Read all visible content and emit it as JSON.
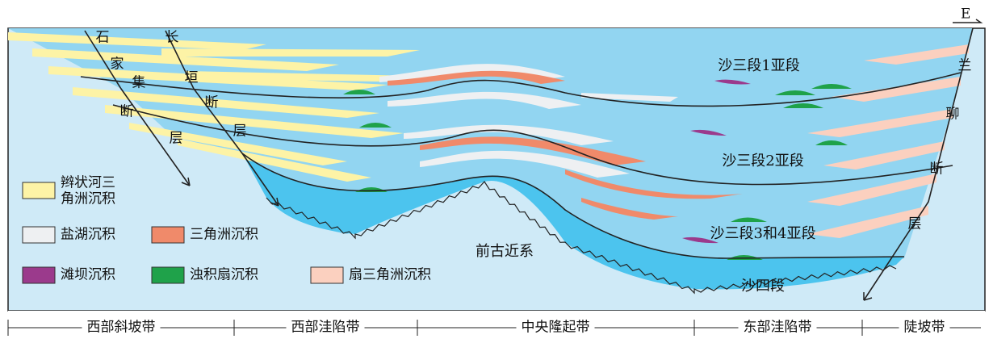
{
  "compass": "E",
  "fault_labels": [
    {
      "chars": [
        "石",
        "家",
        "集",
        "断",
        "层"
      ]
    },
    {
      "chars": [
        "长",
        "垣",
        "断",
        "层"
      ]
    },
    {
      "chars": [
        "兰",
        "聊",
        "断",
        "层"
      ]
    }
  ],
  "units": [
    "沙三段1亚段",
    "沙三段2亚段",
    "沙三段3和4亚段",
    "前古近系",
    "沙四段"
  ],
  "legend": [
    {
      "lines": [
        "辫状河三",
        "角洲沉积"
      ]
    },
    {
      "lines": [
        "盐湖沉积"
      ]
    },
    {
      "lines": [
        "三角洲沉积"
      ]
    },
    {
      "lines": [
        "滩坝沉积"
      ]
    },
    {
      "lines": [
        "浊积扇沉积"
      ]
    },
    {
      "lines": [
        "扇三角洲沉积"
      ]
    }
  ],
  "zones": [
    "西部斜坡带",
    "西部洼陷带",
    "中央隆起带",
    "东部洼陷带",
    "陡坡带"
  ]
}
